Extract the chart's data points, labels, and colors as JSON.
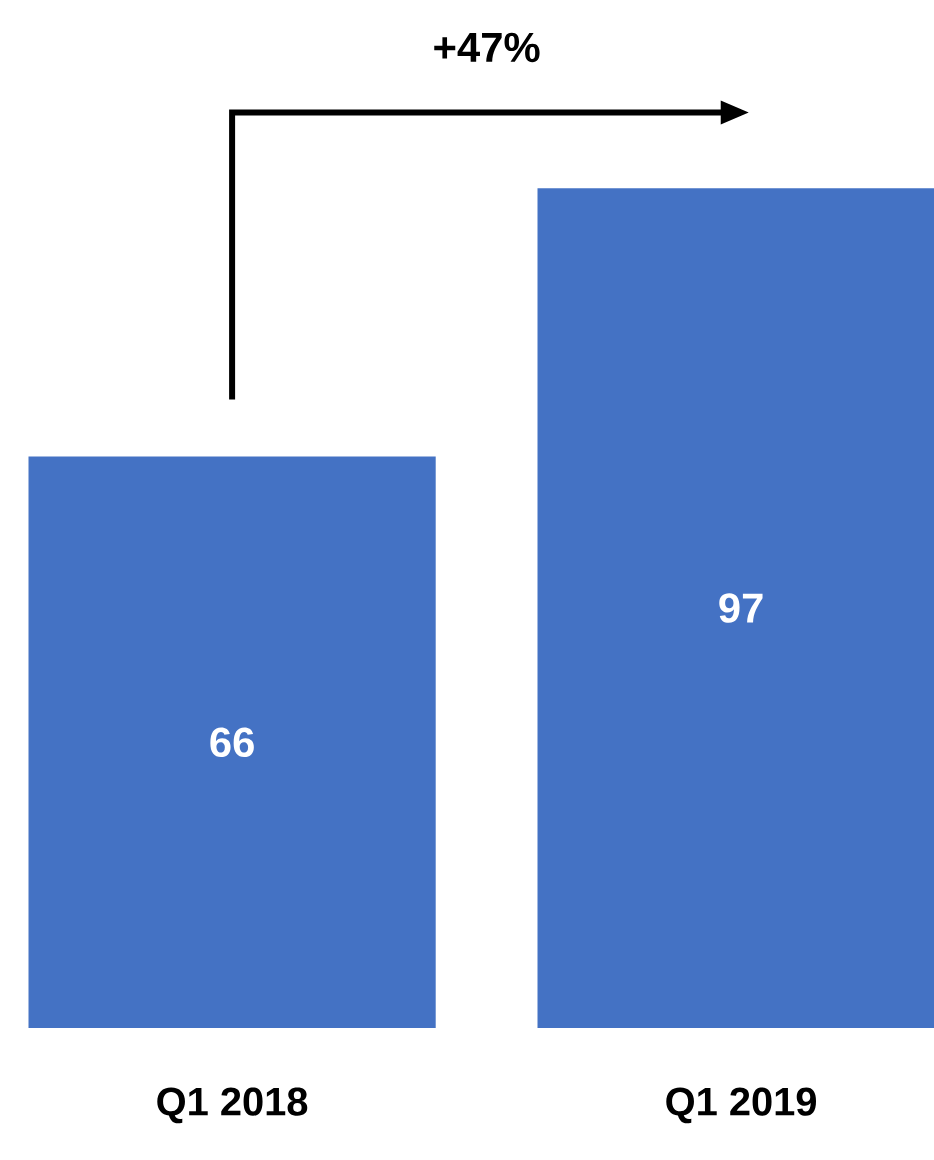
{
  "chart_data": {
    "type": "bar",
    "categories": [
      "Q1 2018",
      "Q1 2019"
    ],
    "values": [
      66,
      97
    ],
    "color": "#4472c4",
    "data_labels": true,
    "annotations": [
      "+47%"
    ]
  }
}
